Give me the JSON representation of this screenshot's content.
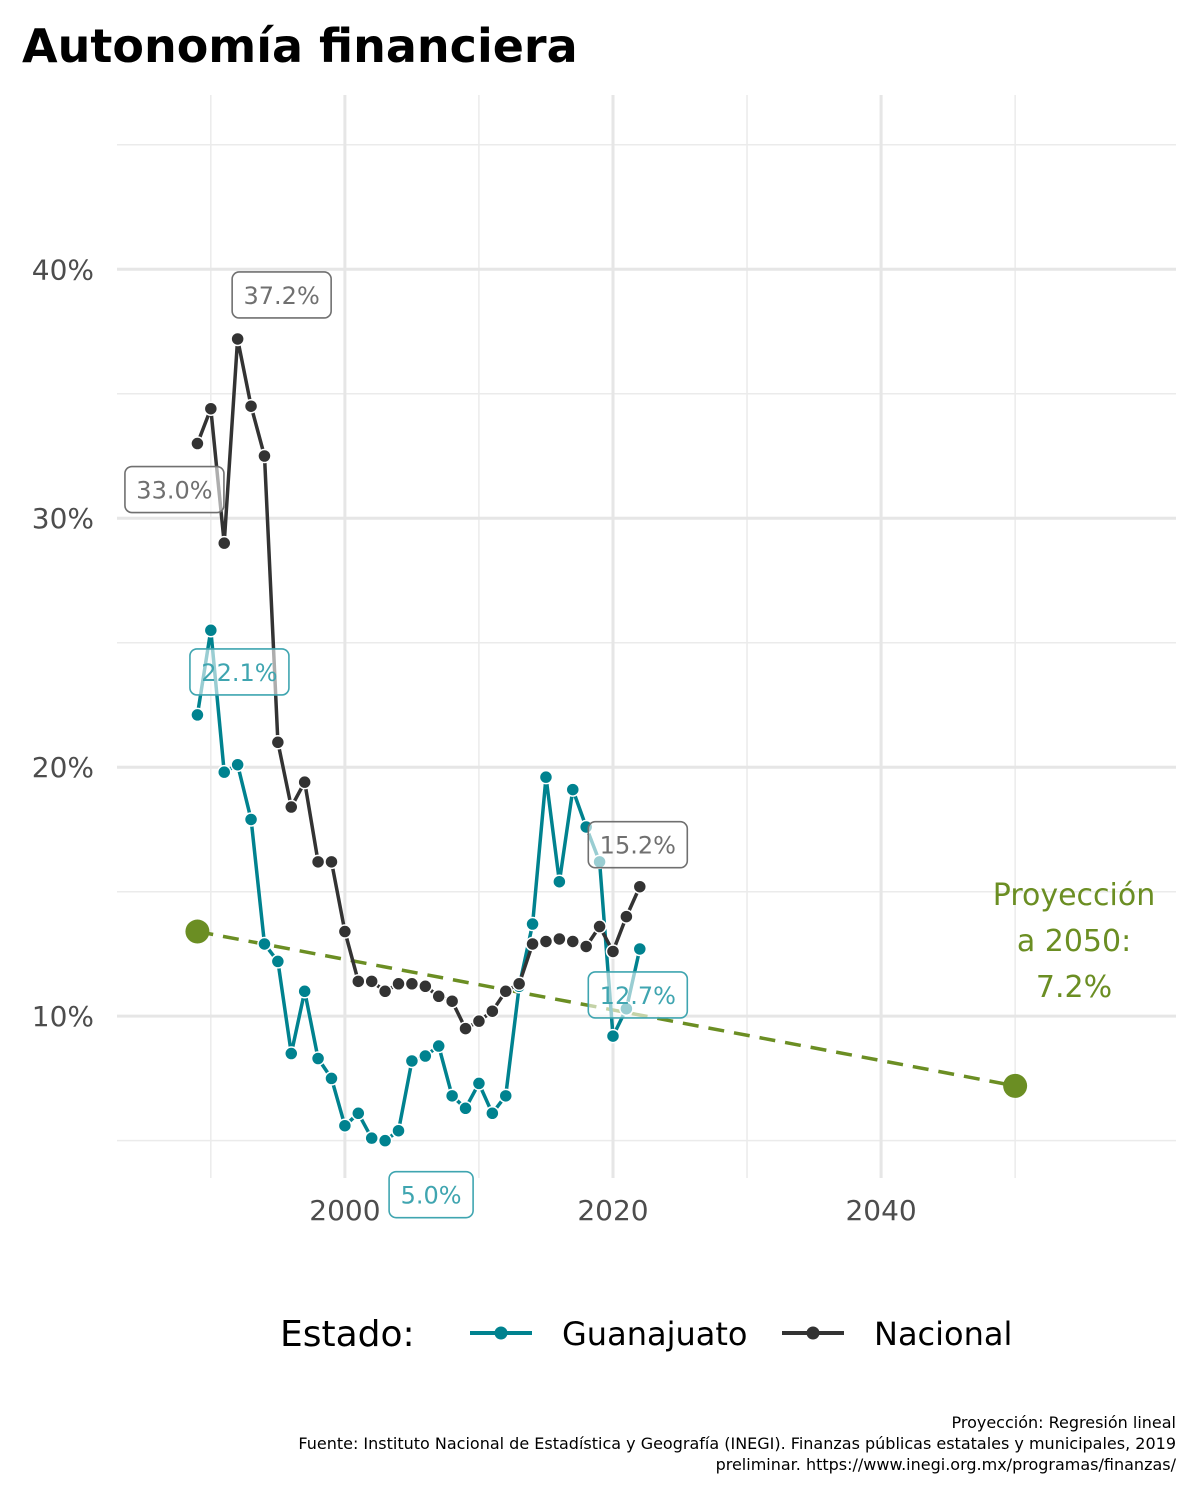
{
  "chart_data": {
    "type": "line",
    "title": "Autonomía financiera",
    "xlabel": "",
    "ylabel": "",
    "xlim": [
      1983,
      2062
    ],
    "ylim": [
      0.035,
      0.47
    ],
    "x_ticks": [
      2000,
      2020,
      2040
    ],
    "x_tick_labels": [
      "2000",
      "2020",
      "2040"
    ],
    "y_ticks": [
      0.1,
      0.2,
      0.3,
      0.4
    ],
    "y_tick_labels": [
      "10%",
      "20%",
      "30%",
      "40%"
    ],
    "grid": true,
    "legend": {
      "title": "Estado:",
      "position": "bottom",
      "entries": [
        "Guanajuato",
        "Nacional"
      ]
    },
    "series": [
      {
        "name": "Guanajuato",
        "color": "#00828f",
        "x": [
          1989,
          1990,
          1991,
          1992,
          1993,
          1994,
          1995,
          1996,
          1997,
          1998,
          1999,
          2000,
          2001,
          2002,
          2003,
          2004,
          2005,
          2006,
          2007,
          2008,
          2009,
          2010,
          2011,
          2012,
          2013,
          2014,
          2015,
          2016,
          2017,
          2018,
          2019,
          2020,
          2021,
          2022
        ],
        "y": [
          0.221,
          0.255,
          0.198,
          0.201,
          0.179,
          0.129,
          0.122,
          0.085,
          0.11,
          0.083,
          0.075,
          0.056,
          0.061,
          0.051,
          0.05,
          0.054,
          0.082,
          0.084,
          0.088,
          0.068,
          0.063,
          0.073,
          0.061,
          0.068,
          0.112,
          0.137,
          0.196,
          0.154,
          0.191,
          0.176,
          0.162,
          0.092,
          0.103,
          0.127
        ]
      },
      {
        "name": "Nacional",
        "color": "#333333",
        "x": [
          1989,
          1990,
          1991,
          1992,
          1993,
          1994,
          1995,
          1996,
          1997,
          1998,
          1999,
          2000,
          2001,
          2002,
          2003,
          2004,
          2005,
          2006,
          2007,
          2008,
          2009,
          2010,
          2011,
          2012,
          2013,
          2014,
          2015,
          2016,
          2017,
          2018,
          2019,
          2020,
          2021,
          2022
        ],
        "y": [
          0.33,
          0.344,
          0.29,
          0.372,
          0.345,
          0.325,
          0.21,
          0.184,
          0.194,
          0.162,
          0.162,
          0.134,
          0.114,
          0.114,
          0.11,
          0.113,
          0.113,
          0.112,
          0.108,
          0.106,
          0.095,
          0.098,
          0.102,
          0.11,
          0.113,
          0.129,
          0.13,
          0.131,
          0.13,
          0.128,
          0.136,
          0.126,
          0.14,
          0.152
        ]
      }
    ],
    "projection": {
      "name": "Proyección",
      "color": "#6b8e23",
      "x": [
        1989,
        2050
      ],
      "y": [
        0.134,
        0.072
      ],
      "label": "Proyección\na 2050:\n7.2%"
    },
    "annotations": [
      {
        "text": "37.2%",
        "x": 1992,
        "y": 0.372,
        "series": "Nacional"
      },
      {
        "text": "33.0%",
        "x": 1989,
        "y": 0.33,
        "series": "Nacional"
      },
      {
        "text": "22.1%",
        "x": 1989,
        "y": 0.221,
        "series": "Guanajuato"
      },
      {
        "text": "15.2%",
        "x": 2022,
        "y": 0.152,
        "series": "Nacional"
      },
      {
        "text": "12.7%",
        "x": 2022,
        "y": 0.127,
        "series": "Guanajuato"
      },
      {
        "text": "5.0%",
        "x": 2003,
        "y": 0.05,
        "series": "Guanajuato"
      }
    ],
    "caption": [
      "Proyección: Regresión lineal",
      "Fuente: Instituto Nacional de Estadística y Geografía (INEGI). Finanzas públicas estatales y municipales, 2019",
      "preliminar. https://www.inegi.org.mx/programas/finanzas/"
    ]
  }
}
